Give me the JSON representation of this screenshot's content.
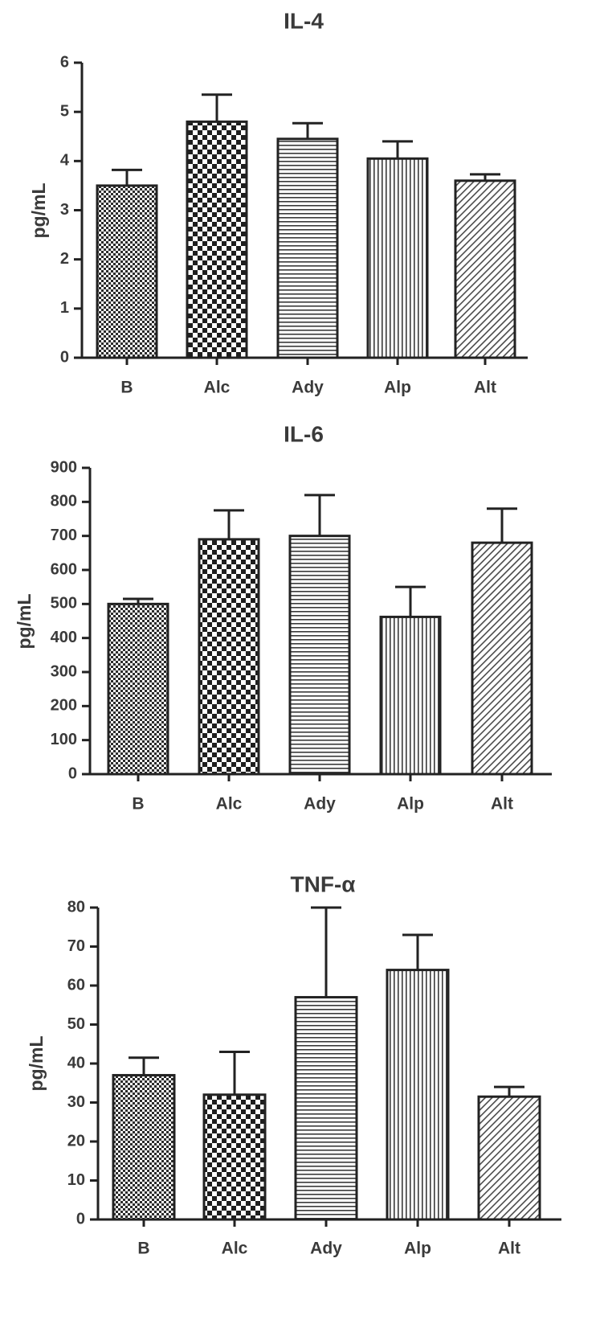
{
  "chart_data": [
    {
      "type": "bar",
      "title": "IL-4",
      "ylabel": "pg/mL",
      "xlabel": "",
      "categories": [
        "B",
        "Alc",
        "Ady",
        "Alp",
        "Alt"
      ],
      "values": [
        3.5,
        4.8,
        4.45,
        4.05,
        3.6
      ],
      "errors": [
        0.32,
        0.55,
        0.32,
        0.35,
        0.13
      ],
      "ylim": [
        0,
        6
      ],
      "yticks": [
        "0",
        "1",
        "2",
        "3",
        "4",
        "5",
        "6"
      ],
      "patterns": [
        "fine-checker",
        "checker",
        "horizontal-lines",
        "vertical-lines",
        "diagonal-lines"
      ]
    },
    {
      "type": "bar",
      "title": "IL-6",
      "ylabel": "pg/mL",
      "xlabel": "",
      "categories": [
        "B",
        "Alc",
        "Ady",
        "Alp",
        "Alt"
      ],
      "values": [
        500,
        690,
        700,
        462,
        680
      ],
      "errors": [
        15,
        85,
        120,
        88,
        100
      ],
      "ylim": [
        0,
        900
      ],
      "yticks": [
        "0",
        "100",
        "200",
        "300",
        "400",
        "500",
        "600",
        "700",
        "800",
        "900"
      ],
      "patterns": [
        "fine-checker",
        "checker",
        "horizontal-lines",
        "vertical-lines",
        "diagonal-lines"
      ]
    },
    {
      "type": "bar",
      "title": "TNF-α",
      "ylabel": "pg/mL",
      "xlabel": "",
      "categories": [
        "B",
        "Alc",
        "Ady",
        "Alp",
        "Alt"
      ],
      "values": [
        37,
        32,
        57,
        64,
        31.5
      ],
      "errors": [
        4.5,
        11,
        23,
        9,
        2.5
      ],
      "ylim": [
        0,
        80
      ],
      "yticks": [
        "0",
        "10",
        "20",
        "30",
        "40",
        "50",
        "60",
        "70",
        "80"
      ],
      "patterns": [
        "fine-checker",
        "checker",
        "horizontal-lines",
        "vertical-lines",
        "diagonal-lines"
      ]
    }
  ]
}
